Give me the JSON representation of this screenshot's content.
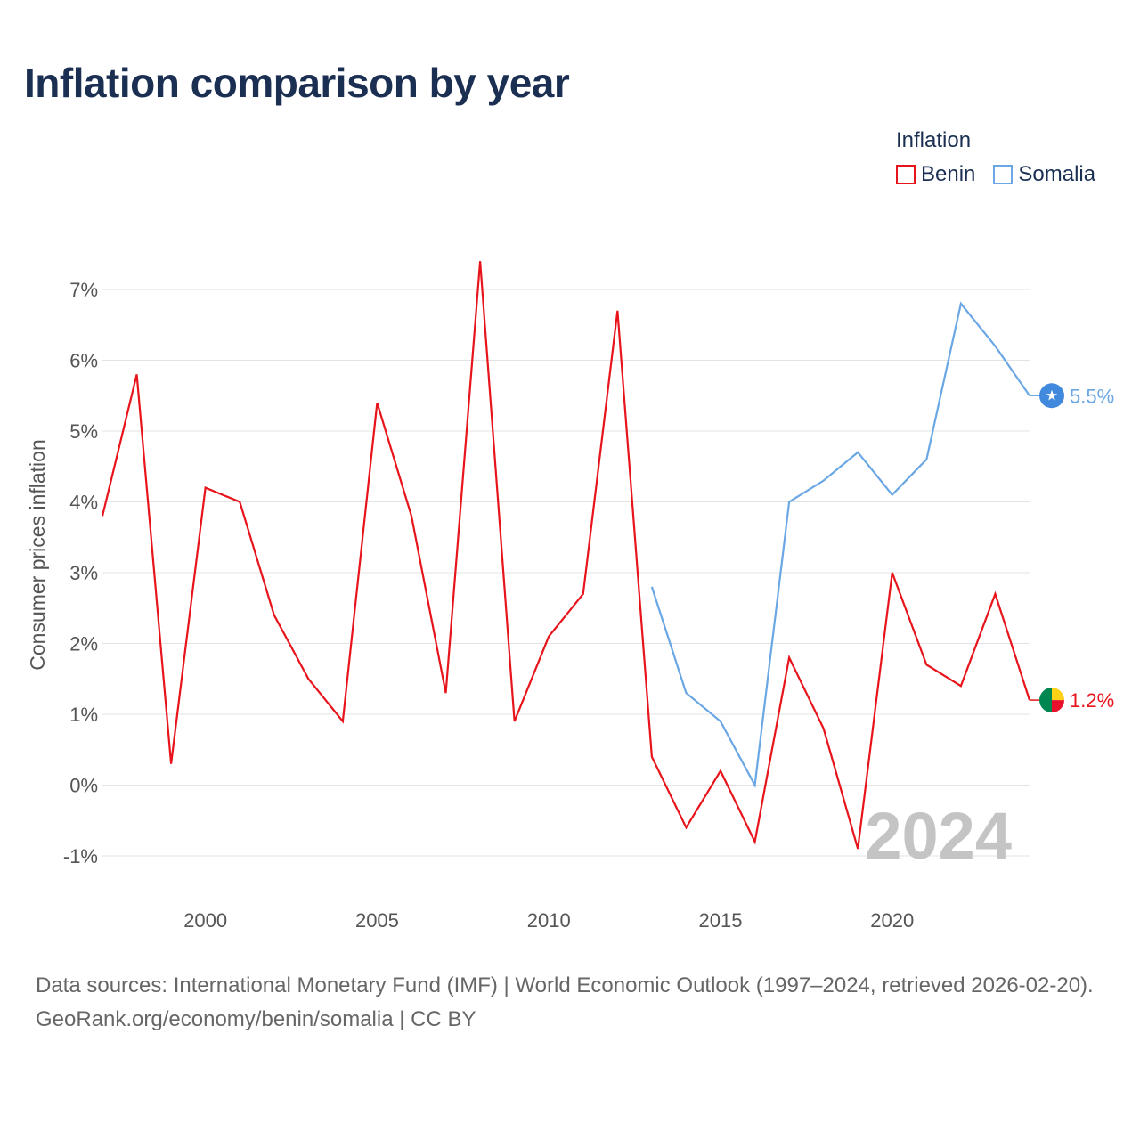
{
  "title": "Inflation comparison by year",
  "legend": {
    "title": "Inflation",
    "items": [
      {
        "name": "Benin",
        "color": "#e8141b"
      },
      {
        "name": "Somalia",
        "color": "#6aa7e4"
      }
    ]
  },
  "footer": {
    "sources": "Data sources: International Monetary Fund (IMF) | World Economic Outlook (1997–2024, retrieved 2026-02-20).",
    "credit": "GeoRank.org/economy/benin/somalia | CC BY"
  },
  "chart_data": {
    "type": "line",
    "title": "Inflation comparison by year",
    "xlabel": "",
    "ylabel": "Consumer prices inflation",
    "xlim": [
      1997,
      2024
    ],
    "ylim": [
      -1,
      7
    ],
    "x_ticks": [
      {
        "value": 2000,
        "label": "2000"
      },
      {
        "value": 2005,
        "label": "2005"
      },
      {
        "value": 2010,
        "label": "2010"
      },
      {
        "value": 2015,
        "label": "2015"
      },
      {
        "value": 2020,
        "label": "2020"
      }
    ],
    "y_ticks": [
      {
        "value": -1,
        "label": "-1%"
      },
      {
        "value": 0,
        "label": "0%"
      },
      {
        "value": 1,
        "label": "1%"
      },
      {
        "value": 2,
        "label": "2%"
      },
      {
        "value": 3,
        "label": "3%"
      },
      {
        "value": 4,
        "label": "4%"
      },
      {
        "value": 5,
        "label": "5%"
      },
      {
        "value": 6,
        "label": "6%"
      },
      {
        "value": 7,
        "label": "7%"
      }
    ],
    "watermark_year": "2024",
    "series": [
      {
        "name": "Benin",
        "color": "#e8141b",
        "x": [
          1997,
          1998,
          1999,
          2000,
          2001,
          2002,
          2003,
          2004,
          2005,
          2006,
          2007,
          2008,
          2009,
          2010,
          2011,
          2012,
          2013,
          2014,
          2015,
          2016,
          2017,
          2018,
          2019,
          2020,
          2021,
          2022,
          2023,
          2024
        ],
        "values": [
          3.8,
          5.8,
          0.3,
          4.2,
          4.0,
          2.4,
          1.5,
          0.9,
          5.4,
          3.8,
          1.3,
          7.4,
          0.9,
          2.1,
          2.7,
          6.7,
          0.4,
          -0.6,
          0.2,
          -0.8,
          1.8,
          0.8,
          -0.9,
          3.0,
          1.7,
          1.4,
          2.7,
          1.2
        ],
        "end_label": "1.2%",
        "marker_colors": [
          "#fcd116",
          "#e8112d",
          "#008751"
        ]
      },
      {
        "name": "Somalia",
        "color": "#6aa7e4",
        "x": [
          2013,
          2014,
          2015,
          2016,
          2017,
          2018,
          2019,
          2020,
          2021,
          2022,
          2023,
          2024
        ],
        "values": [
          2.8,
          1.3,
          0.9,
          0.0,
          4.0,
          4.3,
          4.7,
          4.1,
          4.6,
          6.8,
          6.2,
          5.5
        ],
        "end_label": "5.5%",
        "marker_colors": [
          "#4189dd",
          "#ffffff"
        ]
      }
    ]
  }
}
